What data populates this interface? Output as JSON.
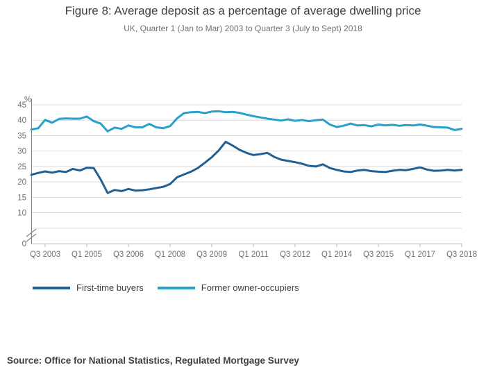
{
  "figure": {
    "title": "Figure 8: Average deposit as a percentage of average dwelling price",
    "subtitle": "UK, Quarter 1 (Jan to Mar) 2003 to Quarter 3 (July to Sept) 2018",
    "source": "Source: Office for National Statistics, Regulated Mortgage Survey"
  },
  "chart_data": {
    "type": "line",
    "unit_label": "%",
    "ylim": [
      0,
      45
    ],
    "grid": "horizontal",
    "legend_position": "bottom-left",
    "axis_break_between_0_and_10": true,
    "x_start": "2003 Q1",
    "x_end": "2018 Q3",
    "frequency": "quarterly",
    "x_tick_labels": [
      "Q3 2003",
      "Q1 2005",
      "Q3 2006",
      "Q1 2008",
      "Q3 2009",
      "Q1 2011",
      "Q3 2012",
      "Q1 2014",
      "Q3 2015",
      "Q1 2017",
      "Q3 2018"
    ],
    "x_tick_indices": [
      2,
      8,
      14,
      20,
      26,
      32,
      38,
      44,
      50,
      56,
      62
    ],
    "y_ticks_labeled": [
      0,
      10,
      15,
      20,
      25,
      30,
      35,
      40,
      45
    ],
    "y_gridlines": [
      5,
      10,
      15,
      20,
      25,
      30,
      35,
      40,
      45
    ],
    "colors": {
      "first_time_buyers": "#206095",
      "former_owner_occupiers": "#27A0CC",
      "gridline": "#d9d9d9",
      "y_axis": "#808080",
      "x_axis": "#b3b3b3",
      "tick_text": "#707071"
    },
    "series": [
      {
        "name": "First-time buyers",
        "color": "#206095",
        "values": [
          22.3,
          22.9,
          23.4,
          23.0,
          23.5,
          23.2,
          24.2,
          23.7,
          24.6,
          24.5,
          20.8,
          16.4,
          17.4,
          17.0,
          17.7,
          17.2,
          17.3,
          17.6,
          18.0,
          18.4,
          19.3,
          21.5,
          22.4,
          23.3,
          24.5,
          26.2,
          28.0,
          30.2,
          33.0,
          31.8,
          30.4,
          29.4,
          28.7,
          29.0,
          29.4,
          28.1,
          27.2,
          26.8,
          26.4,
          25.9,
          25.2,
          25.0,
          25.7,
          24.5,
          23.9,
          23.4,
          23.2,
          23.7,
          23.9,
          23.5,
          23.3,
          23.2,
          23.6,
          23.9,
          23.8,
          24.2,
          24.7,
          24.0,
          23.6,
          23.7,
          23.9,
          23.7,
          23.9
        ]
      },
      {
        "name": "Former owner-occupiers",
        "color": "#27A0CC",
        "values": [
          37.0,
          37.4,
          40.1,
          39.2,
          40.4,
          40.6,
          40.5,
          40.5,
          41.2,
          39.7,
          38.9,
          36.4,
          37.6,
          37.2,
          38.3,
          37.7,
          37.7,
          38.8,
          37.7,
          37.4,
          38.1,
          40.6,
          42.3,
          42.6,
          42.7,
          42.3,
          42.8,
          42.9,
          42.6,
          42.7,
          42.4,
          41.8,
          41.3,
          40.9,
          40.5,
          40.2,
          39.9,
          40.3,
          39.8,
          40.1,
          39.7,
          40.0,
          40.2,
          38.6,
          37.8,
          38.2,
          38.9,
          38.3,
          38.4,
          38.0,
          38.6,
          38.3,
          38.5,
          38.2,
          38.4,
          38.3,
          38.6,
          38.2,
          37.8,
          37.7,
          37.6,
          36.8,
          37.2
        ]
      }
    ]
  }
}
